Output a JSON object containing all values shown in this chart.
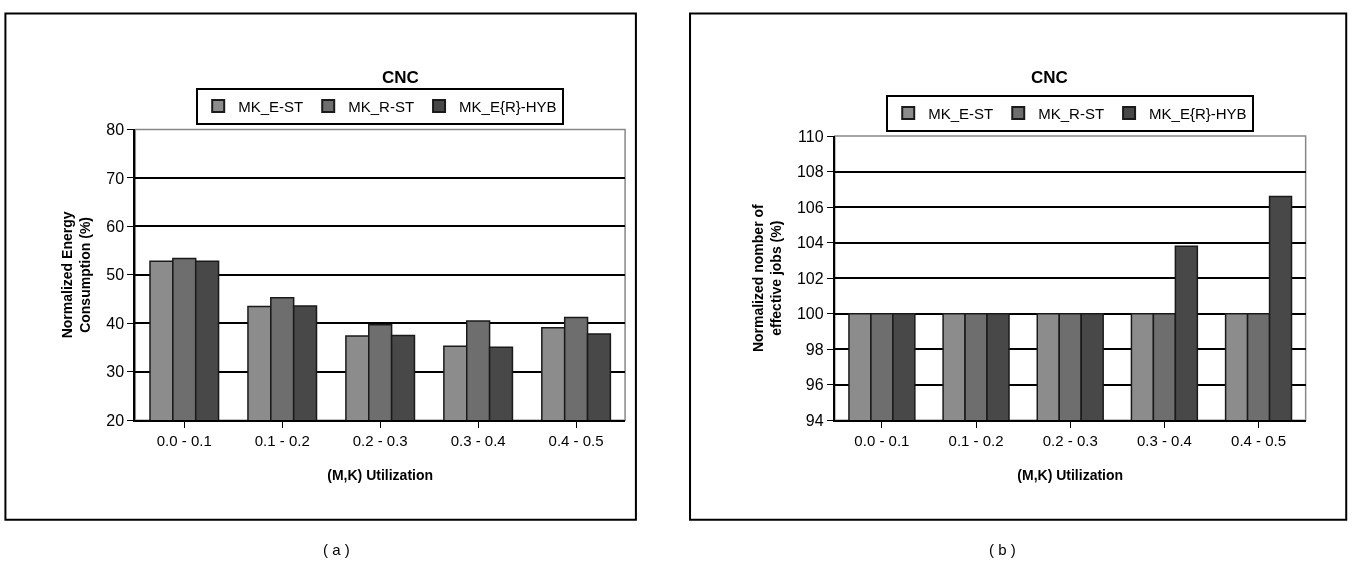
{
  "chart_data": [
    {
      "type": "bar",
      "title": "CNC",
      "xlabel": "(M,K) Utilization",
      "ylabel": "Normalized Energy Consumption (%)",
      "categories": [
        "0.0 - 0.1",
        "0.1 - 0.2",
        "0.2 - 0.3",
        "0.3 - 0.4",
        "0.4 - 0.5"
      ],
      "series": [
        {
          "name": "MK_E-ST",
          "color": "#8c8c8c",
          "values": [
            52.8,
            43.5,
            37.4,
            35.3,
            39.1
          ]
        },
        {
          "name": "MK_R-ST",
          "color": "#6e6e6e",
          "values": [
            53.4,
            45.3,
            39.7,
            40.5,
            41.2
          ]
        },
        {
          "name": "MK_E{R}-HYB",
          "color": "#484848",
          "values": [
            52.8,
            43.6,
            37.5,
            35.1,
            37.8
          ]
        }
      ],
      "ylim": [
        20,
        80
      ],
      "yticks": [
        20,
        30,
        40,
        50,
        60,
        70,
        80
      ],
      "grid": "y",
      "legend": "top",
      "annotations": [
        "( a )"
      ]
    },
    {
      "type": "bar",
      "title": "CNC",
      "xlabel": "(M,K) Utilization",
      "ylabel": "Normalized nomber of effective jobs (%)",
      "categories": [
        "0.0 - 0.1",
        "0.1 - 0.2",
        "0.2 - 0.3",
        "0.3 - 0.4",
        "0.4 - 0.5"
      ],
      "series": [
        {
          "name": "MK_E-ST",
          "color": "#8c8c8c",
          "values": [
            100,
            100,
            100,
            100,
            100
          ]
        },
        {
          "name": "MK_R-ST",
          "color": "#6e6e6e",
          "values": [
            100,
            100,
            100,
            100,
            100
          ]
        },
        {
          "name": "MK_E{R}-HYB",
          "color": "#484848",
          "values": [
            100,
            100,
            100,
            103.8,
            106.6
          ]
        }
      ],
      "ylim": [
        94,
        110
      ],
      "yticks": [
        94,
        96,
        98,
        100,
        102,
        104,
        106,
        108,
        110
      ],
      "grid": "y",
      "legend": "top",
      "annotations": [
        "( b )"
      ]
    }
  ]
}
